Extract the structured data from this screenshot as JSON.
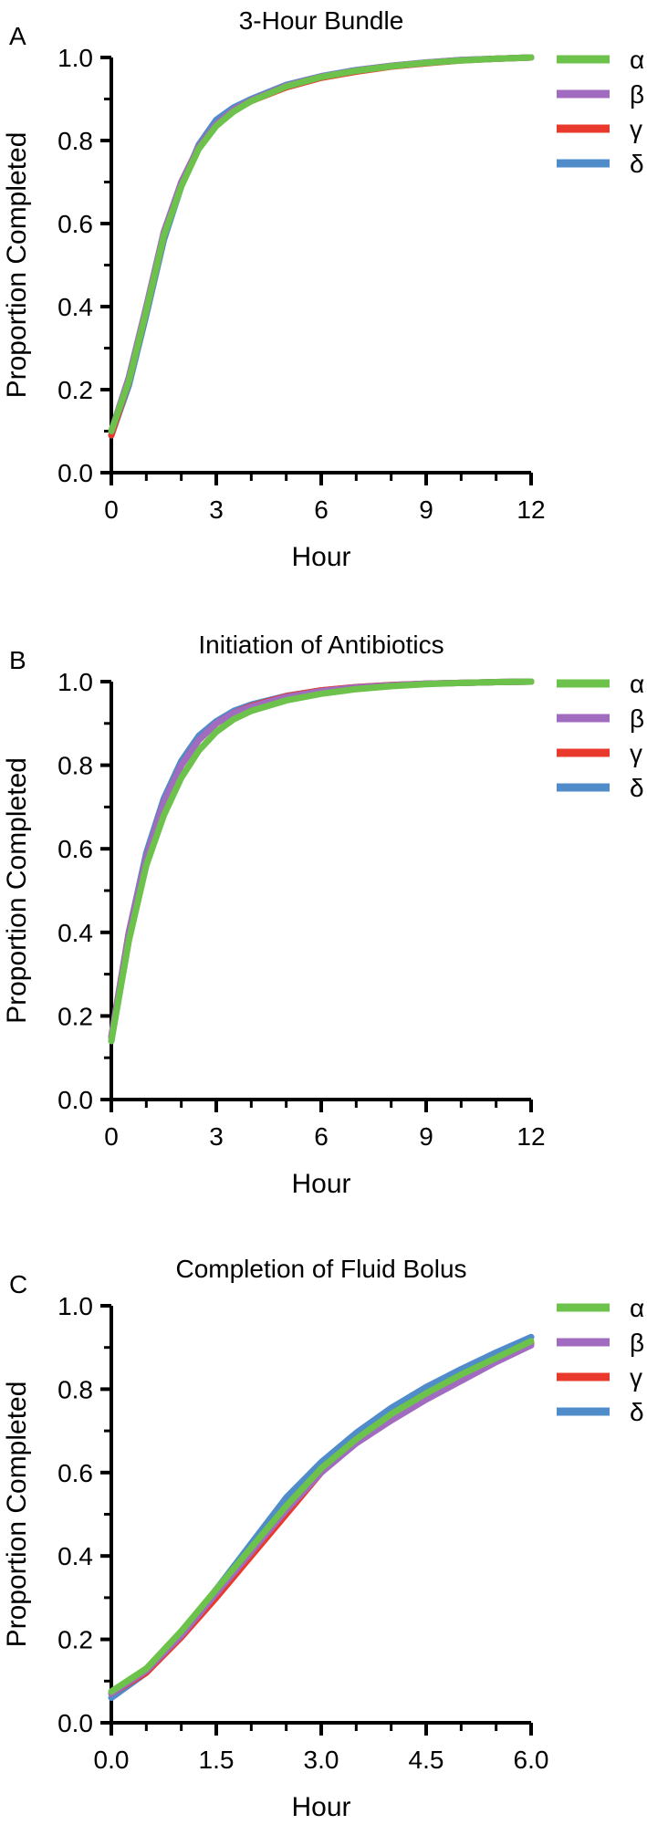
{
  "colors": {
    "alpha": "#6cc24a",
    "beta": "#a16cc0",
    "gamma": "#e8392c",
    "delta": "#4f8cc9"
  },
  "chart_data": [
    {
      "type": "line",
      "panel": "A",
      "title": "3-Hour Bundle",
      "xlabel": "Hour",
      "ylabel": "Proportion Completed",
      "xlim": [
        0,
        12
      ],
      "ylim": [
        0,
        1
      ],
      "xticks": [
        "0",
        "3",
        "6",
        "9",
        "12"
      ],
      "yticks": [
        "0.0",
        "0.2",
        "0.4",
        "0.6",
        "0.8",
        "1.0"
      ],
      "legend": "right",
      "series": [
        {
          "name": "α",
          "color": "#6cc24a",
          "x": [
            0,
            0.5,
            1,
            1.5,
            2,
            2.5,
            3,
            3.5,
            4,
            5,
            6,
            7,
            8,
            9,
            10,
            11,
            12
          ],
          "y": [
            0.1,
            0.22,
            0.39,
            0.57,
            0.69,
            0.78,
            0.835,
            0.87,
            0.895,
            0.93,
            0.953,
            0.968,
            0.979,
            0.987,
            0.993,
            0.997,
            1.0
          ]
        },
        {
          "name": "β",
          "color": "#a16cc0",
          "x": [
            0,
            0.5,
            1,
            1.5,
            2,
            2.5,
            3,
            3.5,
            4,
            5,
            6,
            7,
            8,
            9,
            10,
            11,
            12
          ],
          "y": [
            0.1,
            0.23,
            0.4,
            0.58,
            0.7,
            0.785,
            0.84,
            0.875,
            0.897,
            0.932,
            0.954,
            0.969,
            0.98,
            0.988,
            0.994,
            0.997,
            1.0
          ]
        },
        {
          "name": "γ",
          "color": "#e8392c",
          "x": [
            0,
            0.5,
            1,
            1.5,
            2,
            2.5,
            3,
            3.5,
            4,
            5,
            6,
            7,
            8,
            9,
            10,
            11,
            12
          ],
          "y": [
            0.09,
            0.22,
            0.39,
            0.57,
            0.7,
            0.785,
            0.838,
            0.872,
            0.895,
            0.928,
            0.951,
            0.966,
            0.978,
            0.986,
            0.993,
            0.997,
            1.0
          ]
        },
        {
          "name": "δ",
          "color": "#4f8cc9",
          "x": [
            0,
            0.5,
            1,
            1.5,
            2,
            2.5,
            3,
            3.5,
            4,
            5,
            6,
            7,
            8,
            9,
            10,
            11,
            12
          ],
          "y": [
            0.09,
            0.21,
            0.38,
            0.56,
            0.69,
            0.79,
            0.85,
            0.88,
            0.9,
            0.934,
            0.955,
            0.97,
            0.98,
            0.988,
            0.994,
            0.997,
            1.0
          ]
        }
      ]
    },
    {
      "type": "line",
      "panel": "B",
      "title": "Initiation of Antibiotics",
      "xlabel": "Hour",
      "ylabel": "Proportion Completed",
      "xlim": [
        0,
        12
      ],
      "ylim": [
        0,
        1
      ],
      "xticks": [
        "0",
        "3",
        "6",
        "9",
        "12"
      ],
      "yticks": [
        "0.0",
        "0.2",
        "0.4",
        "0.6",
        "0.8",
        "1.0"
      ],
      "legend": "right",
      "series": [
        {
          "name": "α",
          "color": "#6cc24a",
          "x": [
            0,
            0.5,
            1,
            1.5,
            2,
            2.5,
            3,
            3.5,
            4,
            5,
            6,
            7,
            8,
            9,
            10,
            11,
            12
          ],
          "y": [
            0.14,
            0.38,
            0.56,
            0.68,
            0.77,
            0.835,
            0.88,
            0.91,
            0.93,
            0.955,
            0.971,
            0.982,
            0.989,
            0.994,
            0.997,
            0.999,
            1.0
          ]
        },
        {
          "name": "β",
          "color": "#a16cc0",
          "x": [
            0,
            0.5,
            1,
            1.5,
            2,
            2.5,
            3,
            3.5,
            4,
            5,
            6,
            7,
            8,
            9,
            10,
            11,
            12
          ],
          "y": [
            0.15,
            0.4,
            0.58,
            0.71,
            0.8,
            0.86,
            0.9,
            0.925,
            0.94,
            0.963,
            0.977,
            0.986,
            0.991,
            0.995,
            0.997,
            0.999,
            1.0
          ]
        },
        {
          "name": "γ",
          "color": "#e8392c",
          "x": [
            0,
            0.5,
            1,
            1.5,
            2,
            2.5,
            3,
            3.5,
            4,
            5,
            6,
            7,
            8,
            9,
            10,
            11,
            12
          ],
          "y": [
            0.15,
            0.4,
            0.58,
            0.71,
            0.8,
            0.86,
            0.9,
            0.925,
            0.942,
            0.965,
            0.979,
            0.987,
            0.992,
            0.995,
            0.997,
            0.999,
            1.0
          ]
        },
        {
          "name": "δ",
          "color": "#4f8cc9",
          "x": [
            0,
            0.5,
            1,
            1.5,
            2,
            2.5,
            3,
            3.5,
            4,
            5,
            6,
            7,
            8,
            9,
            10,
            11,
            12
          ],
          "y": [
            0.14,
            0.4,
            0.59,
            0.72,
            0.81,
            0.87,
            0.905,
            0.93,
            0.945,
            0.966,
            0.979,
            0.987,
            0.992,
            0.995,
            0.997,
            0.999,
            1.0
          ]
        }
      ]
    },
    {
      "type": "line",
      "panel": "C",
      "title": "Completion of Fluid Bolus",
      "xlabel": "Hour",
      "ylabel": "Proportion Completed",
      "xlim": [
        0,
        6
      ],
      "ylim": [
        0,
        1
      ],
      "xticks": [
        "0.0",
        "1.5",
        "3.0",
        "4.5",
        "6.0"
      ],
      "yticks": [
        "0.0",
        "0.2",
        "0.4",
        "0.6",
        "0.8",
        "1.0"
      ],
      "legend": "right",
      "series": [
        {
          "name": "α",
          "color": "#6cc24a",
          "x": [
            0,
            0.5,
            1,
            1.5,
            2,
            2.5,
            3,
            3.5,
            4,
            4.5,
            5,
            5.5,
            6
          ],
          "y": [
            0.075,
            0.13,
            0.22,
            0.32,
            0.42,
            0.52,
            0.61,
            0.68,
            0.74,
            0.79,
            0.835,
            0.875,
            0.915
          ]
        },
        {
          "name": "β",
          "color": "#a16cc0",
          "x": [
            0,
            0.5,
            1,
            1.5,
            2,
            2.5,
            3,
            3.5,
            4,
            4.5,
            5,
            5.5,
            6
          ],
          "y": [
            0.07,
            0.125,
            0.21,
            0.31,
            0.41,
            0.51,
            0.6,
            0.67,
            0.725,
            0.775,
            0.82,
            0.865,
            0.905
          ]
        },
        {
          "name": "γ",
          "color": "#e8392c",
          "x": [
            0,
            0.5,
            1,
            1.5,
            2,
            2.5,
            3,
            3.5,
            4,
            4.5,
            5,
            5.5,
            6
          ],
          "y": [
            0.07,
            0.12,
            0.205,
            0.3,
            0.4,
            0.5,
            0.6,
            0.675,
            0.735,
            0.785,
            0.83,
            0.87,
            0.91
          ]
        },
        {
          "name": "δ",
          "color": "#4f8cc9",
          "x": [
            0,
            0.5,
            1,
            1.5,
            2,
            2.5,
            3,
            3.5,
            4,
            4.5,
            5,
            5.5,
            6
          ],
          "y": [
            0.06,
            0.12,
            0.21,
            0.32,
            0.43,
            0.54,
            0.625,
            0.695,
            0.755,
            0.805,
            0.848,
            0.888,
            0.925
          ]
        }
      ]
    }
  ]
}
